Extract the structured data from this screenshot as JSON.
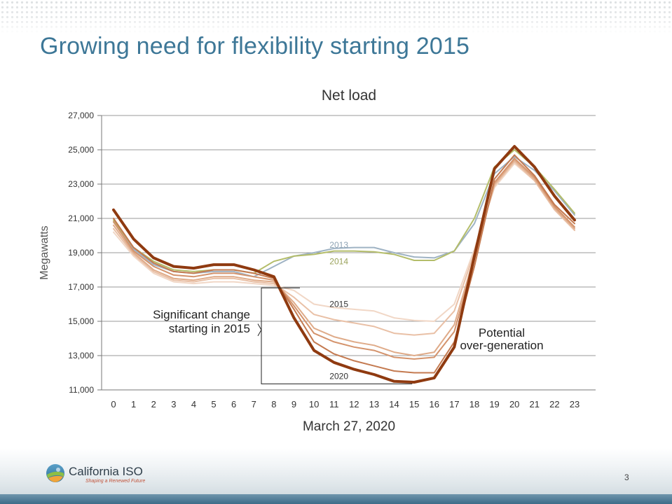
{
  "slide": {
    "title": "Growing need for flexibility starting 2015",
    "page_number": "3"
  },
  "logo": {
    "name": "California ISO",
    "tagline": "Shaping a Renewed Future"
  },
  "colors": {
    "title": "#3d7797",
    "s2013": "#9fb3c4",
    "s2014": "#b4bd6a",
    "s2015": "#f1d7c6",
    "s2016": "#e9c0a6",
    "s2017": "#dfab89",
    "s2018": "#d4936c",
    "s2019": "#c47a50",
    "s2020": "#8f3a10"
  },
  "chart_data": {
    "type": "line",
    "title": "Net load",
    "xlabel": "March 27, 2020",
    "ylabel": "Megawatts",
    "ylim": [
      11000,
      27000
    ],
    "xlim": [
      0,
      23
    ],
    "y_ticks": [
      "11,000",
      "13,000",
      "15,000",
      "17,000",
      "19,000",
      "21,000",
      "23,000",
      "25,000",
      "27,000"
    ],
    "y_tick_values": [
      11000,
      13000,
      15000,
      17000,
      19000,
      21000,
      23000,
      25000,
      27000
    ],
    "x_ticks": [
      "0",
      "1",
      "2",
      "3",
      "4",
      "5",
      "6",
      "7",
      "8",
      "9",
      "10",
      "11",
      "12",
      "13",
      "14",
      "15",
      "16",
      "17",
      "18",
      "19",
      "20",
      "21",
      "22",
      "23"
    ],
    "grid": "horizontal",
    "x": [
      0,
      1,
      2,
      3,
      4,
      5,
      6,
      7,
      8,
      9,
      10,
      11,
      12,
      13,
      14,
      15,
      16,
      17,
      18,
      19,
      20,
      21,
      22,
      23
    ],
    "series": [
      {
        "name": "2013",
        "color": "#9fb3c4",
        "width": 2,
        "values": [
          20800,
          19200,
          18300,
          17900,
          17800,
          17900,
          17900,
          17600,
          18200,
          18800,
          19000,
          19250,
          19300,
          19300,
          19000,
          18750,
          18700,
          19100,
          20700,
          23600,
          24600,
          23800,
          22600,
          21200
        ]
      },
      {
        "name": "2014",
        "color": "#b4bd6a",
        "width": 2,
        "values": [
          20900,
          19300,
          18500,
          18000,
          17900,
          18000,
          18000,
          17800,
          18500,
          18800,
          18900,
          19100,
          19100,
          19050,
          18900,
          18550,
          18550,
          19100,
          21000,
          24000,
          25000,
          24000,
          22700,
          21300
        ]
      },
      {
        "name": "",
        "color": "#f1d7c6",
        "width": 2,
        "values": [
          20200,
          18800,
          17800,
          17300,
          17200,
          17300,
          17300,
          17200,
          17100,
          16800,
          16000,
          15800,
          15700,
          15600,
          15200,
          15050,
          15000,
          16000,
          19200,
          22800,
          24200,
          23200,
          21600,
          20300
        ]
      },
      {
        "name": "",
        "color": "#e9c0a6",
        "width": 2,
        "values": [
          20400,
          18900,
          17900,
          17400,
          17300,
          17500,
          17500,
          17300,
          17200,
          16400,
          15400,
          15100,
          14900,
          14700,
          14300,
          14200,
          14300,
          15600,
          19000,
          22900,
          24300,
          23200,
          21500,
          20300
        ]
      },
      {
        "name": "",
        "color": "#dfab89",
        "width": 2,
        "values": [
          20600,
          19000,
          18000,
          17500,
          17400,
          17600,
          17600,
          17400,
          17300,
          16100,
          14600,
          14100,
          13800,
          13600,
          13200,
          13000,
          13200,
          14800,
          18800,
          23000,
          24400,
          23300,
          21600,
          20400
        ]
      },
      {
        "name": "",
        "color": "#d4936c",
        "width": 2,
        "values": [
          20800,
          19100,
          18200,
          17700,
          17600,
          17800,
          17800,
          17600,
          17400,
          15900,
          14300,
          13800,
          13500,
          13300,
          12900,
          12800,
          12900,
          14400,
          18600,
          23100,
          24500,
          23400,
          21700,
          20500
        ]
      },
      {
        "name": "",
        "color": "#c47a50",
        "width": 2,
        "values": [
          21000,
          19300,
          18400,
          17900,
          17800,
          18000,
          18000,
          17800,
          17500,
          15700,
          13800,
          13100,
          12700,
          12400,
          12100,
          12000,
          12000,
          13800,
          18200,
          23300,
          24700,
          23500,
          21800,
          20700
        ]
      },
      {
        "name": "2020",
        "color": "#8f3a10",
        "width": 4,
        "values": [
          21500,
          19800,
          18700,
          18200,
          18100,
          18300,
          18300,
          18000,
          17600,
          15200,
          13300,
          12600,
          12200,
          11900,
          11500,
          11450,
          11700,
          13500,
          18800,
          23900,
          25200,
          24000,
          22300,
          20900
        ]
      }
    ],
    "series_labels": [
      {
        "text": "2013",
        "x": 12.0,
        "y": 19450
      },
      {
        "text": "2014",
        "x": 12.0,
        "y": 18500
      },
      {
        "text": "2015",
        "x": 12.0,
        "y": 16000
      },
      {
        "text": "2020",
        "x": 12.0,
        "y": 11800
      }
    ],
    "annotations": {
      "significant_change_line1": "Significant change",
      "significant_change_line2": "starting in 2015",
      "overgen_line1": "Potential",
      "overgen_line2": "over-generation"
    }
  }
}
